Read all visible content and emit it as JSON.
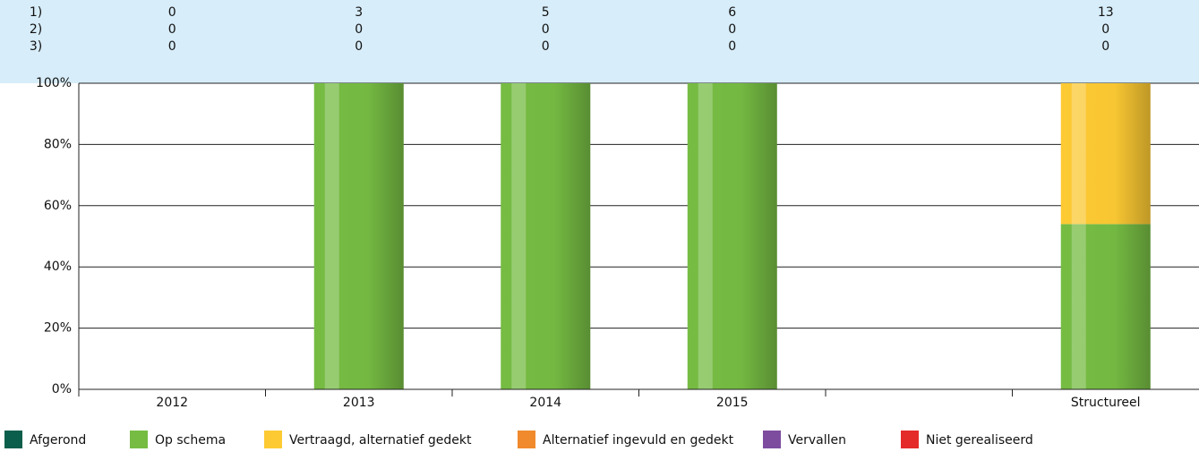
{
  "chart_data": {
    "type": "stacked_bar",
    "categories": [
      "2012",
      "2013",
      "2014",
      "2015",
      null,
      "Structureel"
    ],
    "counts": {
      "labels": [
        "1)",
        "2)",
        "3)"
      ],
      "rows": [
        [
          0,
          3,
          5,
          6,
          null,
          13
        ],
        [
          0,
          0,
          0,
          0,
          null,
          0
        ],
        [
          0,
          0,
          0,
          0,
          null,
          0
        ]
      ]
    },
    "series": [
      {
        "name": "Afgerond",
        "color": "#0b5e4b",
        "values": [
          0,
          0,
          0,
          0,
          null,
          0
        ]
      },
      {
        "name": "Op schema",
        "color": "#76bc43",
        "values": [
          0,
          100,
          100,
          100,
          null,
          54
        ]
      },
      {
        "name": "Vertraagd, alternatief gedekt",
        "color": "#fdca33",
        "values": [
          0,
          0,
          0,
          0,
          null,
          46
        ]
      },
      {
        "name": "Alternatief ingevuld en gedekt",
        "color": "#f08a2c",
        "values": [
          0,
          0,
          0,
          0,
          null,
          0
        ]
      },
      {
        "name": "Vervallen",
        "color": "#7d4c9f",
        "values": [
          0,
          0,
          0,
          0,
          null,
          0
        ]
      },
      {
        "name": "Niet gerealiseerd",
        "color": "#e52a2a",
        "values": [
          0,
          0,
          0,
          0,
          null,
          0
        ]
      }
    ],
    "ylim": [
      0,
      100
    ],
    "yticks": [
      {
        "value": 0,
        "label": "0%"
      },
      {
        "value": 20,
        "label": "20%"
      },
      {
        "value": 40,
        "label": "40%"
      },
      {
        "value": 60,
        "label": "60%"
      },
      {
        "value": 80,
        "label": "80%"
      },
      {
        "value": 100,
        "label": "100%"
      }
    ],
    "grid": true
  }
}
